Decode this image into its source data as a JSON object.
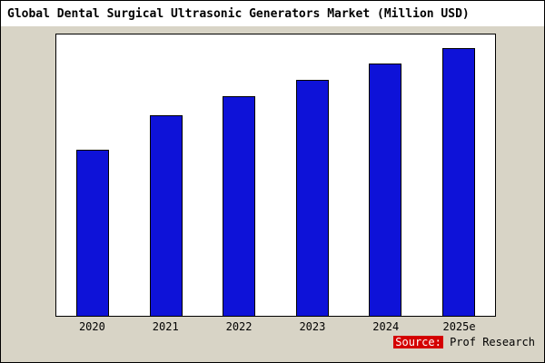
{
  "title": "Global Dental Surgical Ultrasonic Generators Market (Million USD)",
  "source": {
    "label": "Source:",
    "text": " Prof Research"
  },
  "colors": {
    "bar_fill": "#0e12d8",
    "bar_border": "#000000",
    "page_background": "#d8d4c6",
    "plot_background": "#ffffff",
    "title_background": "#ffffff",
    "source_highlight": "#d40000"
  },
  "chart_data": {
    "type": "bar",
    "categories": [
      "2020",
      "2021",
      "2022",
      "2023",
      "2024",
      "2025e"
    ],
    "values": [
      62,
      75,
      82,
      88,
      94,
      100
    ],
    "title": "Global Dental Surgical Ultrasonic Generators Market (Million USD)",
    "xlabel": "",
    "ylabel": "",
    "ylim": [
      0,
      105
    ],
    "grid": false,
    "legend": false,
    "y_axis_labels_shown": false
  }
}
